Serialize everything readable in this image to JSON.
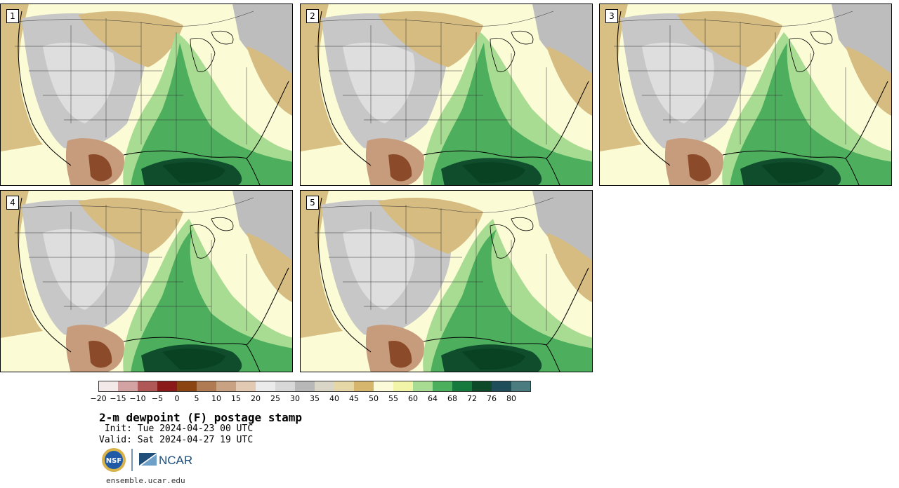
{
  "panels": [
    {
      "number": "1"
    },
    {
      "number": "2"
    },
    {
      "number": "3"
    },
    {
      "number": "4"
    },
    {
      "number": "5"
    }
  ],
  "colorbar": {
    "colors": [
      "#f3e9e9",
      "#d3a2a2",
      "#b05858",
      "#8b1a1a",
      "#8b4513",
      "#b07a52",
      "#c9a284",
      "#e2c9b4",
      "#ebebeb",
      "#d8d8d8",
      "#b8b8b8",
      "#d9d6c8",
      "#e6d7a6",
      "#d6b56c",
      "#fbfbd9",
      "#f2f5a8",
      "#a7dc92",
      "#4caf5e",
      "#167a3e",
      "#0d4a2a",
      "#1f4d5a",
      "#4a7c80"
    ],
    "tick_labels": [
      "-20",
      "-15",
      "-10",
      "-5",
      "0",
      "5",
      "10",
      "15",
      "20",
      "25",
      "30",
      "35",
      "40",
      "45",
      "50",
      "55",
      "60",
      "64",
      "68",
      "72",
      "76",
      "80"
    ]
  },
  "title": "2-m dewpoint (F) postage stamp",
  "init": " Init: Tue 2024-04-23 00 UTC",
  "valid": "Valid: Sat 2024-04-27 19 UTC",
  "logos": {
    "nsf": "NSF",
    "ncar": "NCAR"
  },
  "site": "ensemble.ucar.edu"
}
